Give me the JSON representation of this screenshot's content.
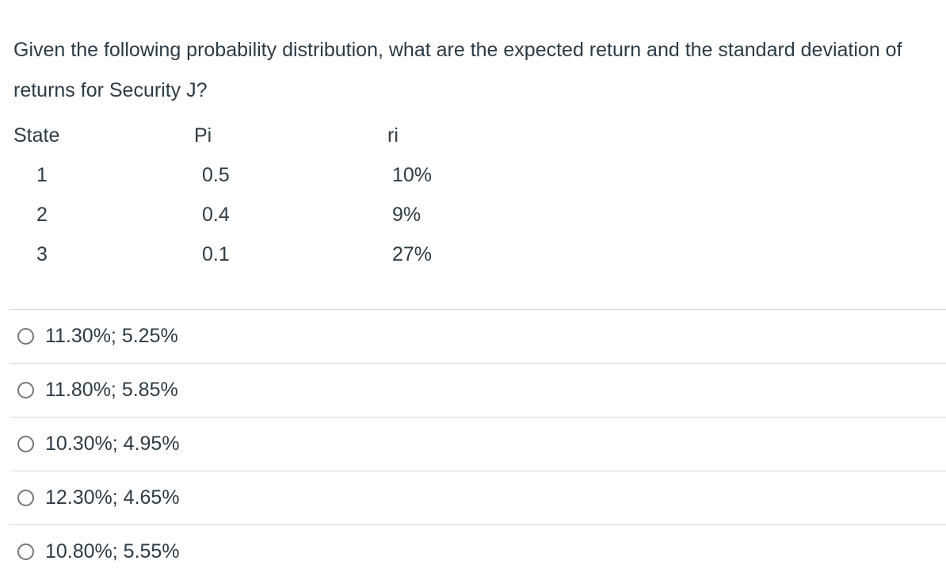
{
  "question": {
    "text": "Given the following probability distribution, what are the expected return and the standard deviation of returns for Security J?"
  },
  "table": {
    "headers": [
      "State",
      "Pi",
      "ri"
    ],
    "rows": [
      {
        "state": "1",
        "pi": "0.5",
        "ri": "10%"
      },
      {
        "state": "2",
        "pi": "0.4",
        "ri": "9%"
      },
      {
        "state": "3",
        "pi": "0.1",
        "ri": "27%"
      }
    ]
  },
  "options": [
    {
      "label": "11.30%; 5.25%",
      "selected": false
    },
    {
      "label": "11.80%; 5.85%",
      "selected": false
    },
    {
      "label": "10.30%; 4.95%",
      "selected": false
    },
    {
      "label": "12.30%; 4.65%",
      "selected": false
    },
    {
      "label": "10.80%; 5.55%",
      "selected": false
    }
  ],
  "colors": {
    "text": "#2D3B45",
    "divider": "#D8D8D8",
    "radio_border": "#767676",
    "background": "#FFFFFF"
  }
}
